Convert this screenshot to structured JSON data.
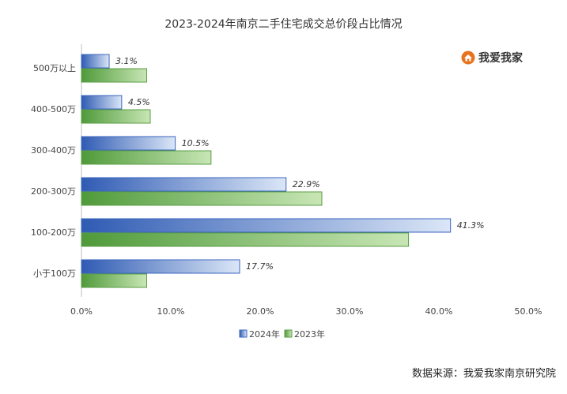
{
  "chart_data": {
    "type": "bar",
    "orientation": "horizontal",
    "title": "2023-2024年南京二手住宅成交总价段占比情况",
    "categories": [
      "500万以上",
      "400-500万",
      "300-400万",
      "200-300万",
      "100-200万",
      "小于100万"
    ],
    "series": [
      {
        "name": "2024年",
        "color": "#4472c4",
        "values": [
          3.1,
          4.5,
          10.5,
          22.9,
          41.3,
          17.7
        ],
        "labels": [
          "3.1%",
          "4.5%",
          "10.5%",
          "22.9%",
          "41.3%",
          "17.7%"
        ]
      },
      {
        "name": "2023年",
        "color": "#70ad47",
        "values": [
          7.3,
          7.7,
          14.5,
          26.9,
          36.6,
          7.3
        ]
      }
    ],
    "xlim": [
      0,
      50
    ],
    "xticks": [
      "0.0%",
      "10.0%",
      "20.0%",
      "30.0%",
      "40.0%",
      "50.0%"
    ],
    "grid": false,
    "legend_position": "bottom"
  },
  "brand": {
    "name": "我爱我家",
    "icon": "house-logo-icon",
    "color": "#e8731e"
  },
  "source": "数据来源：我爱我家南京研究院"
}
